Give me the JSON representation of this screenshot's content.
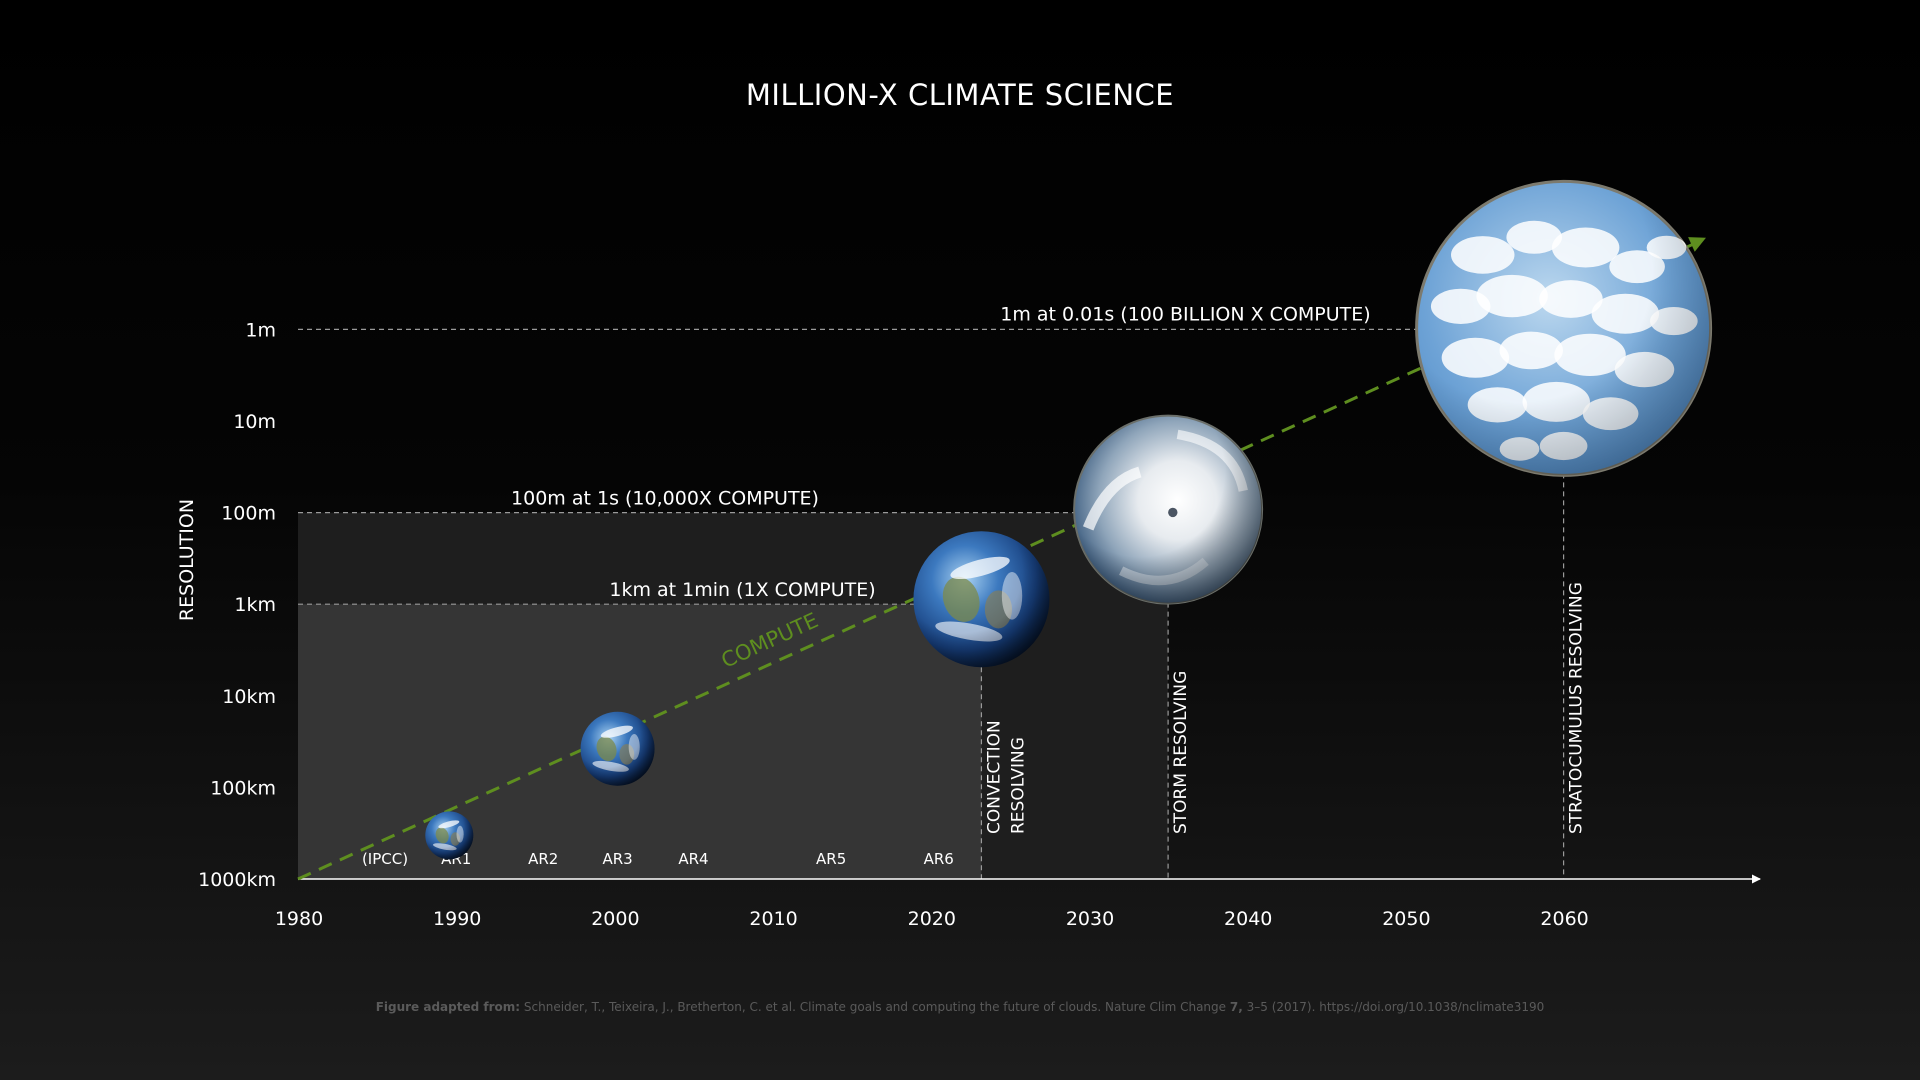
{
  "title": "MILLION-X CLIMATE SCIENCE",
  "citation": {
    "prefix": "Figure adapted from:",
    "text": "Schneider, T., Teixeira, J., Bretherton, C. et al. Climate goals and computing the future of clouds. Nature Clim Change",
    "volume": "7,",
    "tail": "3–5 (2017). https://doi.org/10.1038/nclimate3190"
  },
  "colors": {
    "compute": "#5e8e1f",
    "axis": "#ffffff",
    "guide": "#9a9a9a"
  },
  "chart_data": {
    "type": "scatter",
    "ylabel": "RESOLUTION",
    "xlabel": "",
    "x_ticks": [
      1980,
      1990,
      2000,
      2010,
      2020,
      2030,
      2040,
      2050,
      2060
    ],
    "xlim": [
      1980,
      2070
    ],
    "y_ticks": [
      "1000km",
      "100km",
      "10km",
      "1km",
      "100m",
      "10m",
      "1m"
    ],
    "y_scale": "log",
    "assessment_reports": [
      {
        "label": "(IPCC)",
        "year": 1985.5
      },
      {
        "label": "AR1",
        "year": 1990
      },
      {
        "label": "AR2",
        "year": 1995.5
      },
      {
        "label": "AR3",
        "year": 2000.2
      },
      {
        "label": "AR4",
        "year": 2005
      },
      {
        "label": "AR5",
        "year": 2013.7
      },
      {
        "label": "AR6",
        "year": 2020.5
      }
    ],
    "trend": {
      "label": "COMPUTE",
      "from": {
        "year": 1980,
        "level": "1000km"
      },
      "to": {
        "year": 2069,
        "level": "10cm"
      }
    },
    "points": [
      {
        "name": "earth-1990",
        "year": 1989.5,
        "level": "300km",
        "image": "earth"
      },
      {
        "name": "earth-2000",
        "year": 2000.2,
        "level": "30km",
        "image": "earth"
      },
      {
        "name": "earth-2023",
        "year": 2023.2,
        "level": "1km",
        "image": "earth"
      },
      {
        "name": "hurricane",
        "year": 2035,
        "level": "100m",
        "image": "hurricane"
      },
      {
        "name": "clouds",
        "year": 2060,
        "level": "1m",
        "image": "clouds"
      }
    ],
    "levels": [
      {
        "label": "1km at 1min (1X COMPUTE)",
        "level": "1km",
        "until_year": 2023.2
      },
      {
        "label": "100m at 1s (10,000X COMPUTE)",
        "level": "100m",
        "until_year": 2035
      },
      {
        "label": "1m at 0.01s (100 BILLION X COMPUTE)",
        "level": "1m",
        "until_year": 2060
      }
    ],
    "regimes": [
      {
        "lines": [
          "CONVECTION",
          "RESOLVING"
        ],
        "year": 2023.2
      },
      {
        "lines": [
          "STORM RESOLVING"
        ],
        "year": 2035
      },
      {
        "lines": [
          "STRATOCUMULUS RESOLVING"
        ],
        "year": 2060
      }
    ]
  }
}
